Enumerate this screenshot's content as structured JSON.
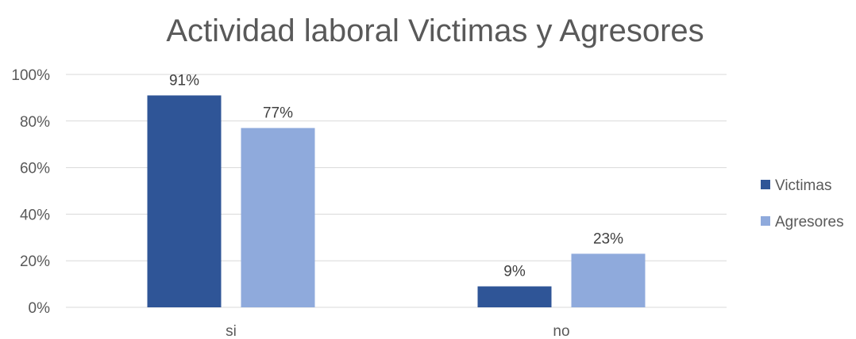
{
  "chart_data": {
    "type": "bar",
    "title": "Actividad laboral Victimas y Agresores",
    "xlabel": "",
    "ylabel": "",
    "categories": [
      "si",
      "no"
    ],
    "series": [
      {
        "name": "Victimas",
        "values": [
          0.91,
          0.09
        ],
        "labels": [
          "91%",
          "9%"
        ],
        "color": "#2f5597"
      },
      {
        "name": "Agresores",
        "values": [
          0.77,
          0.23
        ],
        "labels": [
          "77%",
          "23%"
        ],
        "color": "#8faadc"
      }
    ],
    "ylim": [
      0,
      1
    ],
    "yticks": [
      0,
      0.2,
      0.4,
      0.6,
      0.8,
      1.0
    ],
    "ytick_labels": [
      "0%",
      "20%",
      "40%",
      "60%",
      "80%",
      "100%"
    ],
    "grid": true,
    "legend_position": "right"
  }
}
